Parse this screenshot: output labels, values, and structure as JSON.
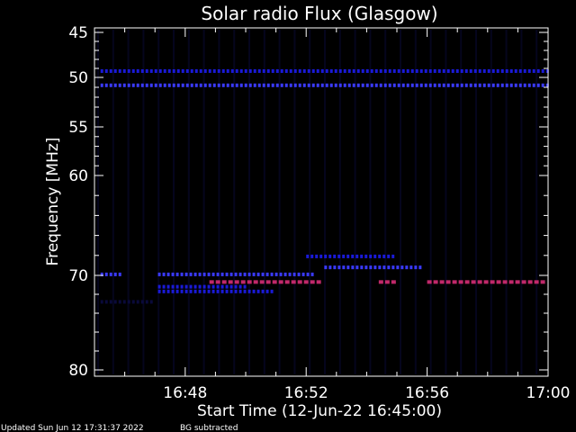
{
  "footer": {
    "updated": "Updated Sun Jun 12 17:31:37 2022",
    "note": "BG subtracted"
  },
  "chart_data": {
    "type": "heatmap",
    "title": "Solar radio Flux (Glasgow)",
    "xlabel": "Start Time (12-Jun-22 16:45:00)",
    "ylabel": "Frequency [MHz]",
    "x_unit": "minutes after 16:45",
    "xlim": [
      0,
      15
    ],
    "ylim": [
      45,
      80
    ],
    "x_ticks": [
      {
        "value": 3,
        "label": "16:48"
      },
      {
        "value": 7,
        "label": "16:52"
      },
      {
        "value": 11,
        "label": "16:56"
      },
      {
        "value": 15,
        "label": "17:00"
      }
    ],
    "y_ticks": [
      {
        "value": 45,
        "label": "45"
      },
      {
        "value": 50,
        "label": "50"
      },
      {
        "value": 55,
        "label": "55"
      },
      {
        "value": 60,
        "label": "60"
      },
      {
        "value": 70,
        "label": "70"
      },
      {
        "value": 80,
        "label": "80"
      }
    ],
    "colors": {
      "background": "#000000",
      "low": "#0a0a3a",
      "medium": "#1a1ad8",
      "high": "#3a3aff",
      "peak": "#c0286a"
    },
    "bands": [
      {
        "freq": 49.3,
        "t_start": 0.2,
        "t_end": 15,
        "intensity": "medium"
      },
      {
        "freq": 50.8,
        "t_start": 0.2,
        "t_end": 15,
        "intensity": "high"
      },
      {
        "freq": 68.1,
        "t_start": 7.0,
        "t_end": 10.0,
        "intensity": "medium"
      },
      {
        "freq": 69.2,
        "t_start": 7.6,
        "t_end": 10.8,
        "intensity": "high"
      },
      {
        "freq": 69.9,
        "t_start": 0.2,
        "t_end": 1.0,
        "intensity": "high"
      },
      {
        "freq": 69.9,
        "t_start": 2.1,
        "t_end": 7.3,
        "intensity": "high"
      },
      {
        "freq": 70.7,
        "t_start": 3.8,
        "t_end": 7.6,
        "intensity": "peak"
      },
      {
        "freq": 70.7,
        "t_start": 9.4,
        "t_end": 9.9,
        "intensity": "peak"
      },
      {
        "freq": 70.7,
        "t_start": 11.0,
        "t_end": 15.0,
        "intensity": "peak"
      },
      {
        "freq": 71.2,
        "t_start": 2.1,
        "t_end": 5.0,
        "intensity": "medium"
      },
      {
        "freq": 71.7,
        "t_start": 2.1,
        "t_end": 6.0,
        "intensity": "medium"
      },
      {
        "freq": 72.8,
        "t_start": 0.2,
        "t_end": 2.0,
        "intensity": "low"
      }
    ]
  }
}
